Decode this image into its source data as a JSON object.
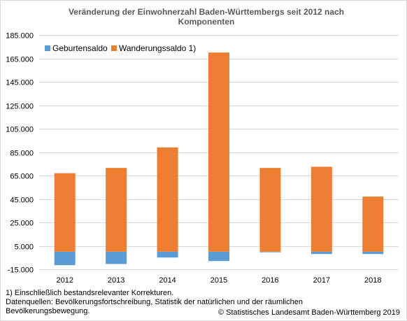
{
  "chart_data": {
    "type": "bar",
    "stacked": true,
    "title": "Veränderung der Einwohnerzahl Baden-Württembergs seit 2012 nach Komponenten",
    "categories": [
      "2012",
      "2013",
      "2014",
      "2015",
      "2016",
      "2017",
      "2018"
    ],
    "series": [
      {
        "name": "Geburtensaldo",
        "values": [
          -11500,
          -10500,
          -5000,
          -8000,
          -500,
          -2000,
          -2000
        ],
        "color": "#5b9bd5"
      },
      {
        "name": "Wanderungssaldo 1)",
        "values": [
          67000,
          71500,
          89000,
          170000,
          71500,
          72500,
          47000
        ],
        "color": "#ed7d31"
      }
    ],
    "ylim": [
      -15000,
      185000
    ],
    "yticks": [
      -15000,
      5000,
      25000,
      45000,
      65000,
      85000,
      105000,
      125000,
      145000,
      165000,
      185000
    ],
    "ytick_labels": [
      "-15.000",
      "5.000",
      "25.000",
      "45.000",
      "65.000",
      "85.000",
      "105.000",
      "125.000",
      "145.000",
      "165.000",
      "185.000"
    ],
    "grid": true,
    "legend": "top-left",
    "xlabel": "",
    "ylabel": ""
  },
  "footnotes": [
    "1) Einschließlich bestandsrelevanter Korrekturen.",
    "Datenquellen: Bevölkerungsfortschreibung, Statistik der natürlichen und der räumlichen",
    "Bevölkerungsbewegung."
  ],
  "copyright": "© Statistisches Landesamt Baden-Württemberg 2019"
}
